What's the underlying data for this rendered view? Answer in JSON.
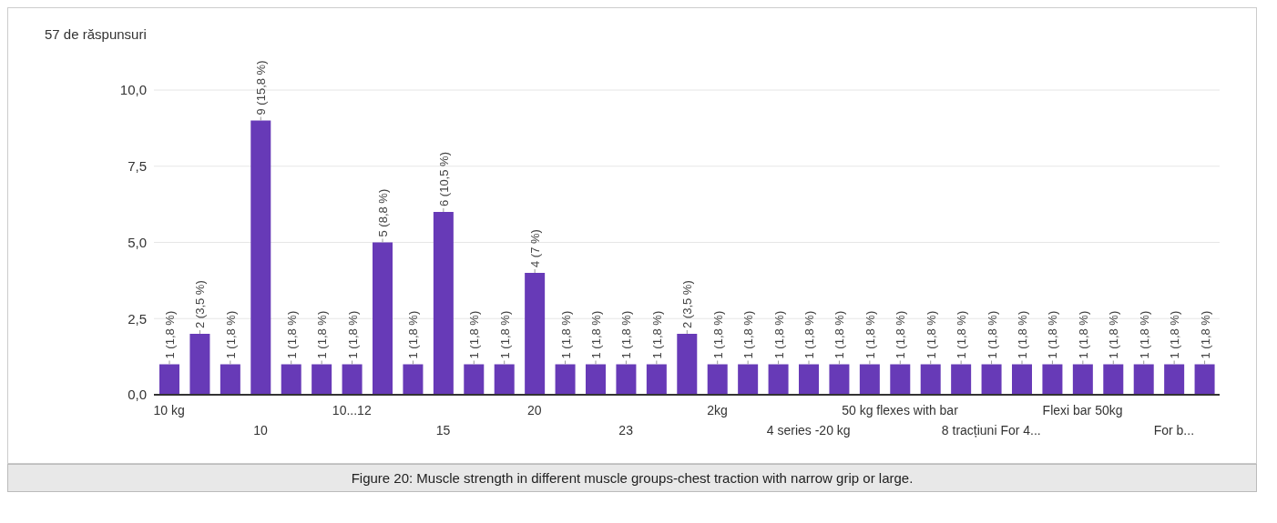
{
  "chart_data": {
    "type": "bar",
    "title": "57 de răspunsuri",
    "categories": [
      "10 kg",
      null,
      null,
      "10",
      null,
      null,
      "10...12",
      null,
      null,
      "15",
      null,
      null,
      "20",
      null,
      null,
      "23",
      null,
      null,
      "2kg",
      null,
      null,
      "4 series -20 kg",
      null,
      null,
      "50 kg flexes with bar",
      null,
      null,
      "8 tracțiuni For 4...",
      null,
      null,
      "Flexi bar 50kg",
      null,
      null,
      "For b...",
      null
    ],
    "values": [
      1,
      2,
      1,
      9,
      1,
      1,
      1,
      5,
      1,
      6,
      1,
      1,
      4,
      1,
      1,
      1,
      1,
      2,
      1,
      1,
      1,
      1,
      1,
      1,
      1,
      1,
      1,
      1,
      1,
      1,
      1,
      1,
      1,
      1,
      1
    ],
    "value_labels": [
      "1 (1,8 %)",
      "2 (3,5 %)",
      "1 (1,8 %)",
      "9 (15,8 %)",
      "1 (1,8 %)",
      "1 (1,8 %)",
      "1 (1,8 %)",
      "5 (8,8 %)",
      "1 (1,8 %)",
      "6 (10,5 %)",
      "1 (1,8 %)",
      "1 (1,8 %)",
      "4 (7 %)",
      "1 (1,8 %)",
      "1 (1,8 %)",
      "1 (1,8 %)",
      "1 (1,8 %)",
      "2 (3,5 %)",
      "1 (1,8 %)",
      "1 (1,8 %)",
      "1 (1,8 %)",
      "1 (1,8 %)",
      "1 (1,8 %)",
      "1 (1,8 %)",
      "1 (1,8 %)",
      "1 (1,8 %)",
      "1 (1,8 %)",
      "1 (1,8 %)",
      "1 (1,8 %)",
      "1 (1,8 %)",
      "1 (1,8 %)",
      "1 (1,8 %)",
      "1 (1,8 %)",
      "1 (1,8 %)",
      "1 (1,8 %)"
    ],
    "color": "#673ab7",
    "ylim": [
      0,
      10
    ],
    "yticks": [
      {
        "value": 0,
        "label": "0,0"
      },
      {
        "value": 2.5,
        "label": "2,5"
      },
      {
        "value": 5,
        "label": "5,0"
      },
      {
        "value": 7.5,
        "label": "7,5"
      },
      {
        "value": 10,
        "label": "10,0"
      }
    ],
    "grid": "y",
    "annotations": [
      "Figure 20: Muscle strength in different muscle groups-chest traction with narrow grip or large."
    ]
  }
}
